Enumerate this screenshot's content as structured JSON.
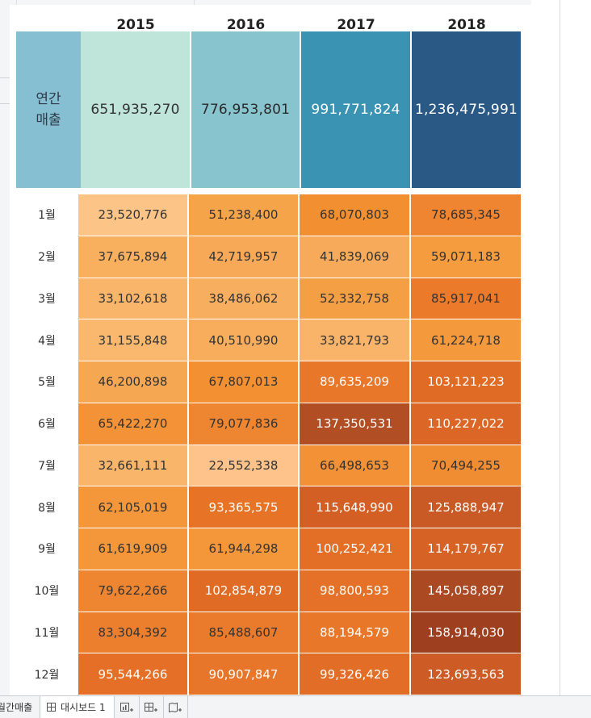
{
  "years": [
    "2015",
    "2016",
    "2017",
    "2018"
  ],
  "annual": {
    "label_line1": "연간",
    "label_line2": "매출",
    "values": [
      "651,935,270",
      "776,953,801",
      "991,771,824",
      "1,236,475,991"
    ],
    "colors": [
      "#bfe4d9",
      "#88c4cd",
      "#3a93b3",
      "#2a5986"
    ],
    "text_colors": [
      "#333333",
      "#2a2a2a",
      "#ffffff",
      "#ffffff"
    ]
  },
  "monthly": {
    "rows": [
      {
        "month": "1월",
        "values": [
          "23,520,776",
          "51,238,400",
          "68,070,803",
          "78,685,345"
        ],
        "colors": [
          "#fdc487",
          "#f6a449",
          "#f29031",
          "#ef8530"
        ],
        "text_colors": [
          "#333",
          "#333",
          "#333",
          "#333"
        ]
      },
      {
        "month": "2월",
        "values": [
          "37,675,894",
          "42,719,957",
          "41,839,069",
          "59,071,183"
        ],
        "colors": [
          "#f8b05e",
          "#f7a958",
          "#f7ab5a",
          "#f59c3e"
        ],
        "text_colors": [
          "#333",
          "#333",
          "#333",
          "#333"
        ]
      },
      {
        "month": "3월",
        "values": [
          "33,102,618",
          "38,486,062",
          "52,332,758",
          "85,917,041"
        ],
        "colors": [
          "#f9b569",
          "#f8ae5f",
          "#f59f45",
          "#eb7a2b"
        ],
        "text_colors": [
          "#333",
          "#333",
          "#333",
          "#333"
        ]
      },
      {
        "month": "4월",
        "values": [
          "31,155,848",
          "40,510,990",
          "33,821,793",
          "61,224,718"
        ],
        "colors": [
          "#f9b86d",
          "#f8ad5c",
          "#f9b469",
          "#f4993c"
        ],
        "text_colors": [
          "#333",
          "#333",
          "#333",
          "#333"
        ]
      },
      {
        "month": "5월",
        "values": [
          "46,200,898",
          "67,807,013",
          "89,635,209",
          "103,121,223"
        ],
        "colors": [
          "#f6a751",
          "#f29032",
          "#e8772a",
          "#e06b24"
        ],
        "text_colors": [
          "#333",
          "#333",
          "#fff",
          "#fff"
        ]
      },
      {
        "month": "6월",
        "values": [
          "65,422,270",
          "79,077,836",
          "137,350,531",
          "110,227,022"
        ],
        "colors": [
          "#f39237",
          "#ee8530",
          "#b14e24",
          "#dc6625"
        ],
        "text_colors": [
          "#333",
          "#333",
          "#fff",
          "#fff"
        ]
      },
      {
        "month": "7월",
        "values": [
          "32,661,111",
          "22,552,338",
          "66,498,653",
          "70,494,255"
        ],
        "colors": [
          "#f9b66a",
          "#fec38a",
          "#f29135",
          "#f08d32"
        ],
        "text_colors": [
          "#333",
          "#333",
          "#333",
          "#333"
        ]
      },
      {
        "month": "8월",
        "values": [
          "62,105,019",
          "93,365,575",
          "115,648,990",
          "125,888,947"
        ],
        "colors": [
          "#f4963a",
          "#e77327",
          "#d45f25",
          "#c95a25"
        ],
        "text_colors": [
          "#333",
          "#fff",
          "#fff",
          "#fff"
        ]
      },
      {
        "month": "9월",
        "values": [
          "61,619,909",
          "61,944,298",
          "100,252,421",
          "114,179,767"
        ],
        "colors": [
          "#f4973b",
          "#f4963a",
          "#e36e26",
          "#d76225"
        ],
        "text_colors": [
          "#333",
          "#333",
          "#fff",
          "#fff"
        ]
      },
      {
        "month": "10월",
        "values": [
          "79,622,266",
          "102,854,879",
          "98,800,593",
          "145,058,897"
        ],
        "colors": [
          "#ee8531",
          "#e06b25",
          "#e47127",
          "#ab4a22"
        ],
        "text_colors": [
          "#333",
          "#fff",
          "#fff",
          "#fff"
        ]
      },
      {
        "month": "11월",
        "values": [
          "83,304,392",
          "85,488,607",
          "88,194,579",
          "158,914,030"
        ],
        "colors": [
          "#ec7f2e",
          "#ea7b2c",
          "#e8772a",
          "#9e3f20"
        ],
        "text_colors": [
          "#333",
          "#333",
          "#fff",
          "#fff"
        ]
      },
      {
        "month": "12월",
        "values": [
          "95,544,266",
          "90,907,847",
          "99,326,426",
          "123,693,563"
        ],
        "colors": [
          "#e56f26",
          "#e7752a",
          "#e26d26",
          "#cc5b25"
        ],
        "text_colors": [
          "#fff",
          "#fff",
          "#fff",
          "#fff"
        ]
      }
    ]
  },
  "tabs": {
    "partial_tab_label": "월간매출",
    "active_tab_label": "대시보드 1"
  },
  "icons": {
    "dashboard": "dashboard-grid-icon",
    "new_worksheet": "new-worksheet-icon",
    "new_dashboard": "new-dashboard-icon",
    "new_story": "new-story-icon"
  }
}
